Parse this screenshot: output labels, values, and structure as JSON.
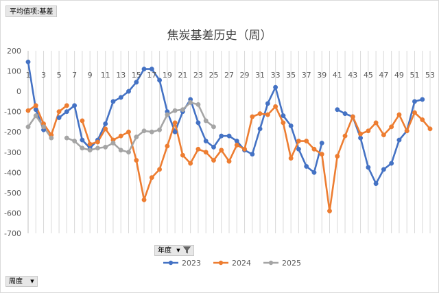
{
  "pivot": {
    "value_field": "平均值项:基差",
    "legend_field": "年度",
    "axis_field": "周度"
  },
  "chart_data": {
    "type": "line",
    "title": "焦炭基差历史（周）",
    "xlabel": "",
    "ylabel": "",
    "ylim": [
      -700,
      200
    ],
    "yticks": [
      200,
      100,
      0,
      -100,
      -200,
      -300,
      -400,
      -500,
      -600,
      -700
    ],
    "x_tick_labels": [
      1,
      3,
      5,
      7,
      9,
      11,
      13,
      15,
      17,
      19,
      21,
      23,
      25,
      27,
      29,
      31,
      33,
      35,
      37,
      39,
      41,
      43,
      45,
      47,
      49,
      51,
      53
    ],
    "x": [
      1,
      2,
      3,
      4,
      5,
      6,
      7,
      8,
      9,
      10,
      11,
      12,
      13,
      14,
      15,
      16,
      17,
      18,
      19,
      20,
      21,
      22,
      23,
      24,
      25,
      26,
      27,
      28,
      29,
      30,
      31,
      32,
      33,
      34,
      35,
      36,
      37,
      38,
      39,
      40,
      41,
      42,
      43,
      44,
      45,
      46,
      47,
      48,
      49,
      50,
      51,
      52,
      53
    ],
    "grid": "vertical",
    "legend": "bottom",
    "series": [
      {
        "name": "2023",
        "color": "#4472c4",
        "values": [
          145,
          -90,
          -190,
          null,
          -130,
          -100,
          -70,
          -240,
          -280,
          -240,
          -160,
          -50,
          -30,
          0,
          45,
          110,
          110,
          55,
          -100,
          -200,
          -100,
          -40,
          -155,
          -245,
          -275,
          -220,
          -220,
          -245,
          -290,
          -310,
          -185,
          -60,
          20,
          -120,
          -170,
          -285,
          -370,
          -400,
          -255,
          null,
          -90,
          -110,
          -125,
          -230,
          -375,
          -455,
          -385,
          -355,
          -240,
          -195,
          -50,
          -40,
          null
        ]
      },
      {
        "name": "2024",
        "color": "#ed7d31",
        "values": [
          -95,
          -70,
          -160,
          -215,
          -100,
          -70,
          null,
          -145,
          -260,
          -250,
          -185,
          -240,
          -220,
          -200,
          -340,
          -535,
          -425,
          -385,
          -270,
          -155,
          -315,
          -355,
          -285,
          -300,
          -340,
          -290,
          -345,
          -265,
          -285,
          -125,
          -110,
          -115,
          -75,
          -155,
          -330,
          -245,
          -245,
          -285,
          -310,
          -590,
          -320,
          -220,
          -125,
          -210,
          -195,
          -155,
          -215,
          -175,
          -115,
          -195,
          -105,
          -140,
          -185
        ]
      },
      {
        "name": "2025",
        "color": "#a5a5a5",
        "values": [
          -175,
          -120,
          -175,
          -230,
          null,
          -230,
          -245,
          -280,
          -290,
          -280,
          -275,
          -255,
          -290,
          -300,
          -225,
          -195,
          -200,
          -190,
          -115,
          -95,
          -90,
          -55,
          -65,
          -145,
          -175,
          null,
          null,
          null,
          null,
          null,
          null,
          null,
          null,
          null,
          null,
          null,
          null,
          null,
          null,
          null,
          null,
          null,
          null,
          null,
          null,
          null,
          null,
          null,
          null,
          null,
          null,
          null,
          null
        ]
      }
    ]
  }
}
